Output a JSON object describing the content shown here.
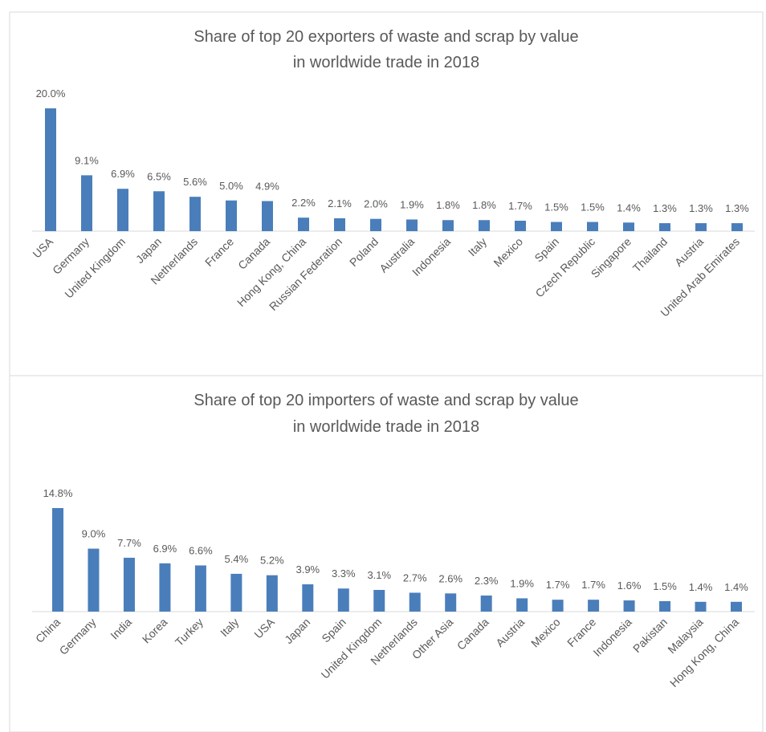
{
  "chart_data": [
    {
      "type": "bar",
      "title": [
        "Share of top 20 exporters of waste and scrap by value",
        "in worldwide trade in 2018"
      ],
      "color": "#4a7ebb",
      "categories": [
        "USA",
        "Germany",
        "United Kingdom",
        "Japan",
        "Netherlands",
        "France",
        "Canada",
        "Hong Kong, China",
        "Russian Federation",
        "Poland",
        "Australia",
        "Indonesia",
        "Italy",
        "Mexico",
        "Spain",
        "Czech Republic",
        "Singapore",
        "Thailand",
        "Austria",
        "United Arab Emirates"
      ],
      "values": [
        20.0,
        9.1,
        6.9,
        6.5,
        5.6,
        5.0,
        4.9,
        2.2,
        2.1,
        2.0,
        1.9,
        1.8,
        1.8,
        1.7,
        1.5,
        1.5,
        1.4,
        1.3,
        1.3,
        1.3
      ],
      "value_labels": [
        "20.0%",
        "9.1%",
        "6.9%",
        "6.5%",
        "5.6%",
        "5.0%",
        "4.9%",
        "2.2%",
        "2.1%",
        "2.0%",
        "1.9%",
        "1.8%",
        "1.8%",
        "1.7%",
        "1.5%",
        "1.5%",
        "1.4%",
        "1.3%",
        "1.3%",
        "1.3%"
      ]
    },
    {
      "type": "bar",
      "title": [
        "Share of top 20 importers of waste and scrap by value",
        "in worldwide trade in 2018"
      ],
      "color": "#4a7ebb",
      "categories": [
        "China",
        "Germany",
        "India",
        "Korea",
        "Turkey",
        "Italy",
        "USA",
        "Japan",
        "Spain",
        "United Kingdom",
        "Netherlands",
        "Other Asia",
        "Canada",
        "Austria",
        "Mexico",
        "France",
        "Indonesia",
        "Pakistan",
        "Malaysia",
        "Hong Kong, China"
      ],
      "values": [
        14.8,
        9.0,
        7.7,
        6.9,
        6.6,
        5.4,
        5.2,
        3.9,
        3.3,
        3.1,
        2.7,
        2.6,
        2.3,
        1.9,
        1.7,
        1.7,
        1.6,
        1.5,
        1.4,
        1.4
      ],
      "value_labels": [
        "14.8%",
        "9.0%",
        "7.7%",
        "6.9%",
        "6.6%",
        "5.4%",
        "5.2%",
        "3.9%",
        "3.3%",
        "3.1%",
        "2.7%",
        "2.6%",
        "2.3%",
        "1.9%",
        "1.7%",
        "1.7%",
        "1.6%",
        "1.5%",
        "1.4%",
        "1.4%"
      ]
    }
  ]
}
